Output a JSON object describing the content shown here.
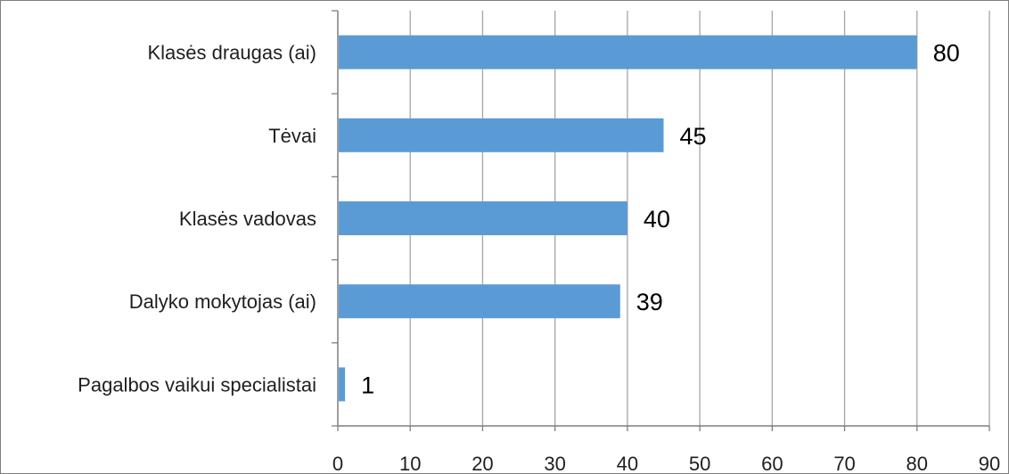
{
  "chart_data": {
    "type": "bar",
    "orientation": "horizontal",
    "title": "",
    "xlabel": "",
    "ylabel": "",
    "categories": [
      "Klasės draugas (ai)",
      "Tėvai",
      "Klasės vadovas",
      "Dalyko mokytojas (ai)",
      "Pagalbos vaikui specialistai"
    ],
    "values": [
      80,
      45,
      40,
      39,
      1
    ],
    "data_labels": [
      "80",
      "45",
      "40",
      "39",
      "1"
    ],
    "xlim": [
      0,
      90
    ],
    "x_ticks": [
      0,
      10,
      20,
      30,
      40,
      50,
      60,
      70,
      80,
      90
    ],
    "x_tick_labels": [
      "0",
      "10",
      "20",
      "30",
      "40",
      "50",
      "60",
      "70",
      "80",
      "90"
    ],
    "grid": "vertical",
    "legend": "none",
    "colors": {
      "bar": "#5b9bd5",
      "grid": "#a6a6a6",
      "axis": "#7f7f7f",
      "border": "#7f7f7f"
    }
  }
}
